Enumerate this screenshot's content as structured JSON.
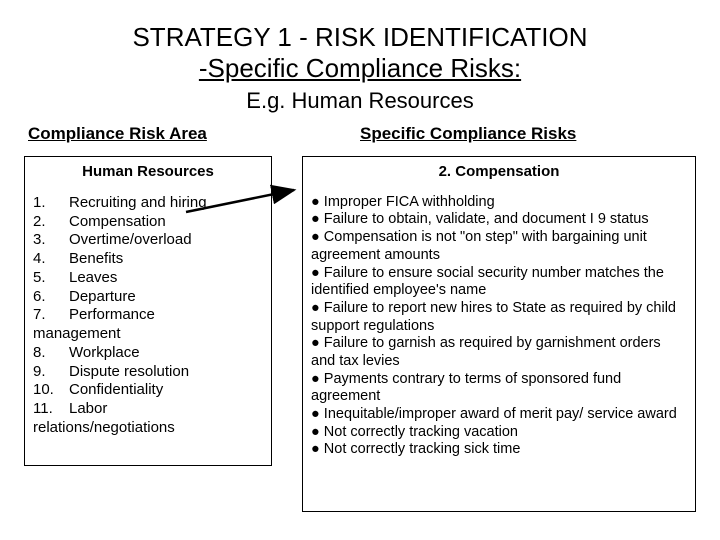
{
  "title_line1": "STRATEGY 1 - RISK IDENTIFICATION",
  "title_line2": "-Specific Compliance Risks:",
  "subtitle": "E.g. Human Resources",
  "left": {
    "header": "Compliance Risk Area",
    "box_title": "Human Resources",
    "items": [
      {
        "n": "1.",
        "t": "Recruiting and hiring"
      },
      {
        "n": "2.",
        "t": "Compensation"
      },
      {
        "n": "3.",
        "t": "Overtime/overload"
      },
      {
        "n": "4.",
        "t": "Benefits"
      },
      {
        "n": "5.",
        "t": "Leaves"
      },
      {
        "n": "6.",
        "t": "Departure"
      },
      {
        "n": "7.",
        "t": "Performance"
      },
      {
        "n": "",
        "t": "management",
        "noindent": true
      },
      {
        "n": "8.",
        "t": "Workplace"
      },
      {
        "n": "9.",
        "t": "Dispute resolution"
      },
      {
        "n": "10.",
        "t": "Confidentiality"
      },
      {
        "n": "11.",
        "t": "Labor"
      },
      {
        "n": "",
        "t": "relations/negotiations",
        "noindent": true
      }
    ]
  },
  "right": {
    "header": "Specific Compliance Risks",
    "box_title": "2.  Compensation",
    "bullets": [
      "●  Improper FICA withholding",
      "●  Failure to obtain, validate, and document I 9 status",
      "●  Compensation is not \"on step\" with bargaining unit agreement amounts",
      "●  Failure to ensure social security number matches the identified employee's name",
      "●  Failure to report new hires to State as required by child support regulations",
      "●  Failure to garnish as required by garnishment orders and tax levies",
      "●  Payments contrary to terms of sponsored fund agreement",
      "●  Inequitable/improper award of merit pay/ service award",
      "●  Not correctly tracking vacation",
      "●  Not correctly tracking sick time"
    ]
  },
  "style": {
    "bg": "#ffffff",
    "fg": "#000000",
    "title_fontsize": 26,
    "subtitle_fontsize": 22,
    "header_fontsize": 17,
    "body_fontsize": 15,
    "bullet_fontsize": 14.5,
    "arrow_color": "#000000"
  }
}
